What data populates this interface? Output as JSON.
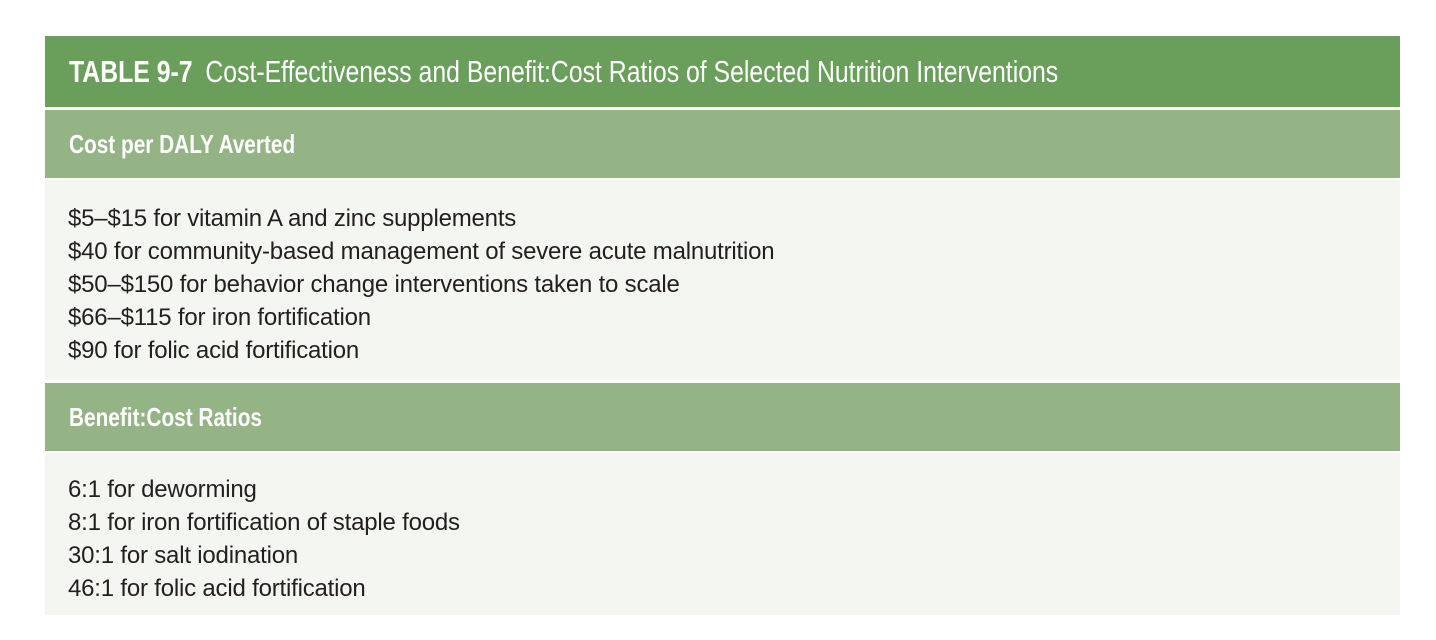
{
  "table": {
    "number": "TABLE 9-7",
    "title": "Cost-Effectiveness and Benefit:Cost Ratios of Selected Nutrition Interventions",
    "sections": [
      {
        "heading": "Cost per DALY Averted",
        "items": [
          "$5–$15 for vitamin A and zinc supplements",
          "$40 for community-based management of severe acute malnutrition",
          "$50–$150 for behavior change interventions taken to scale",
          "$66–$115 for iron fortification",
          "$90 for folic acid fortification"
        ]
      },
      {
        "heading": "Benefit:Cost Ratios",
        "items": [
          "6:1 for deworming",
          "8:1 for iron fortification of staple foods",
          "30:1 for salt iodination",
          "46:1 for folic acid fortification"
        ]
      }
    ]
  },
  "colors": {
    "title_bar": "#6a9f5b",
    "section_bar": "#94b486",
    "body_bg": "#f4f6f2"
  }
}
